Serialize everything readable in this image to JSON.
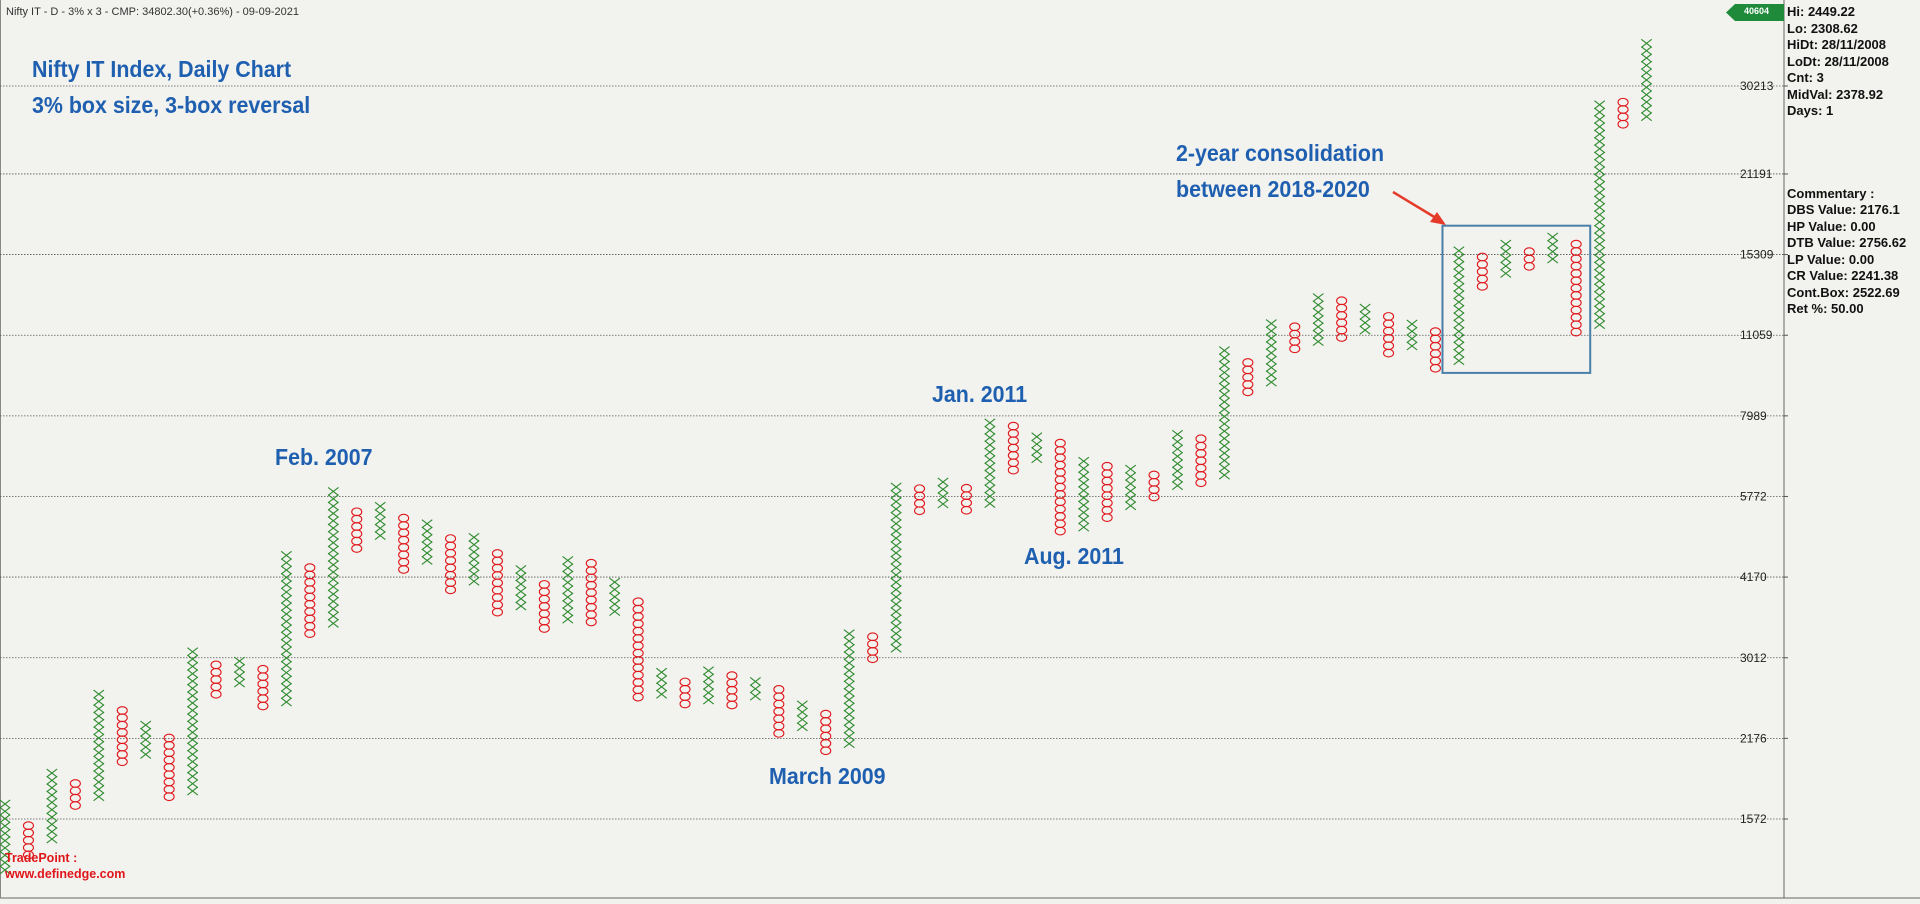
{
  "header": {
    "caption": "Nifty IT - D - 3% x 3 - CMP: 34802.30(+0.36%) - 09-09-2021",
    "title_line1": "Nifty IT Index, Daily Chart",
    "title_line2": "3% box size, 3-box reversal"
  },
  "annotations": {
    "feb2007": "Feb. 2007",
    "jan2011": "Jan. 2011",
    "aug2011": "Aug. 2011",
    "mar2009": "March 2009",
    "consol_line1": "2-year consolidation",
    "consol_line2": "between 2018-2020"
  },
  "info_panel": {
    "hi": "Hi: 2449.22",
    "lo": "Lo: 2308.62",
    "hidt": "HiDt: 28/11/2008",
    "lodt": "LoDt: 28/11/2008",
    "cnt": "Cnt: 3",
    "midval": "MidVal: 2378.92",
    "days": "Days: 1",
    "commentary": "Commentary :",
    "dbs": "DBS Value:  2176.1",
    "hp": "HP Value: 0.00",
    "dtb": "DTB Value: 2756.62",
    "lp": "LP Value: 0.00",
    "cr": "CR Value: 2241.38",
    "contbox": "Cont.Box: 2522.69",
    "ret": "Ret %: 50.00"
  },
  "price_badge": "40604",
  "brand": {
    "line1": "TradePoint :",
    "line2": "www.definedge.com"
  },
  "colors": {
    "x_color": "#2e8b2e",
    "o_color": "#e0161a",
    "annotation": "#1f5fb0",
    "box": "#4a7fa8",
    "arrow": "#e53a2a",
    "badge": "#1e8a3a"
  },
  "chart_data": {
    "type": "point-and-figure",
    "box_size_pct": 3,
    "reversal": 3,
    "scale": "log",
    "y_ticks": [
      1572,
      2176,
      3012,
      4170,
      5772,
      7989,
      11059,
      15309,
      21191,
      30213
    ],
    "y_tick_labels": [
      "1572",
      "2176",
      "3012",
      "4170",
      "5772",
      "7989",
      "11059",
      "15309",
      "21191",
      "30213"
    ],
    "columns": [
      {
        "t": "X",
        "lo": 1280,
        "hi": 1660
      },
      {
        "t": "O",
        "lo": 1360,
        "hi": 1530
      },
      {
        "t": "X",
        "lo": 1450,
        "hi": 1900
      },
      {
        "t": "O",
        "lo": 1660,
        "hi": 1820
      },
      {
        "t": "X",
        "lo": 1720,
        "hi": 2580
      },
      {
        "t": "O",
        "lo": 1980,
        "hi": 2430
      },
      {
        "t": "X",
        "lo": 2040,
        "hi": 2270
      },
      {
        "t": "O",
        "lo": 1720,
        "hi": 2160
      },
      {
        "t": "X",
        "lo": 1760,
        "hi": 3060
      },
      {
        "t": "O",
        "lo": 2600,
        "hi": 2900
      },
      {
        "t": "X",
        "lo": 2720,
        "hi": 3000
      },
      {
        "t": "O",
        "lo": 2480,
        "hi": 2880
      },
      {
        "t": "X",
        "lo": 2520,
        "hi": 4500
      },
      {
        "t": "O",
        "lo": 3320,
        "hi": 4360
      },
      {
        "t": "X",
        "lo": 3460,
        "hi": 5880
      },
      {
        "t": "O",
        "lo": 4680,
        "hi": 5500
      },
      {
        "t": "X",
        "lo": 4930,
        "hi": 5470
      },
      {
        "t": "O",
        "lo": 4300,
        "hi": 5280
      },
      {
        "t": "X",
        "lo": 4460,
        "hi": 5120
      },
      {
        "t": "O",
        "lo": 3960,
        "hi": 4910
      },
      {
        "t": "X",
        "lo": 4100,
        "hi": 4850
      },
      {
        "t": "O",
        "lo": 3620,
        "hi": 4600
      },
      {
        "t": "X",
        "lo": 3710,
        "hi": 4250
      },
      {
        "t": "O",
        "lo": 3390,
        "hi": 4020
      },
      {
        "t": "X",
        "lo": 3520,
        "hi": 4490
      },
      {
        "t": "O",
        "lo": 3480,
        "hi": 4350
      },
      {
        "t": "X",
        "lo": 3630,
        "hi": 4030
      },
      {
        "t": "O",
        "lo": 2570,
        "hi": 3830
      },
      {
        "t": "X",
        "lo": 2600,
        "hi": 2860
      },
      {
        "t": "O",
        "lo": 2500,
        "hi": 2760
      },
      {
        "t": "X",
        "lo": 2540,
        "hi": 2880
      },
      {
        "t": "O",
        "lo": 2490,
        "hi": 2790
      },
      {
        "t": "X",
        "lo": 2580,
        "hi": 2770
      },
      {
        "t": "O",
        "lo": 2220,
        "hi": 2670
      },
      {
        "t": "X",
        "lo": 2280,
        "hi": 2480
      },
      {
        "t": "O",
        "lo": 2070,
        "hi": 2430
      },
      {
        "t": "X",
        "lo": 2130,
        "hi": 3330
      },
      {
        "t": "O",
        "lo": 3000,
        "hi": 3240
      },
      {
        "t": "X",
        "lo": 3130,
        "hi": 6070
      },
      {
        "t": "O",
        "lo": 5450,
        "hi": 5900
      },
      {
        "t": "X",
        "lo": 5600,
        "hi": 6070
      },
      {
        "t": "O",
        "lo": 5460,
        "hi": 5910
      },
      {
        "t": "X",
        "lo": 5610,
        "hi": 7700
      },
      {
        "t": "O",
        "lo": 6420,
        "hi": 7580
      },
      {
        "t": "X",
        "lo": 6720,
        "hi": 7440
      },
      {
        "t": "O",
        "lo": 5020,
        "hi": 7120
      },
      {
        "t": "X",
        "lo": 5100,
        "hi": 6690
      },
      {
        "t": "O",
        "lo": 5300,
        "hi": 6500
      },
      {
        "t": "X",
        "lo": 5560,
        "hi": 6420
      },
      {
        "t": "O",
        "lo": 5760,
        "hi": 6290
      },
      {
        "t": "X",
        "lo": 6030,
        "hi": 7520
      },
      {
        "t": "O",
        "lo": 6100,
        "hi": 7240
      },
      {
        "t": "X",
        "lo": 6290,
        "hi": 10360
      },
      {
        "t": "O",
        "lo": 8800,
        "hi": 10000
      },
      {
        "t": "X",
        "lo": 9150,
        "hi": 11710
      },
      {
        "t": "O",
        "lo": 10470,
        "hi": 11290
      },
      {
        "t": "X",
        "lo": 10780,
        "hi": 12940
      },
      {
        "t": "O",
        "lo": 10960,
        "hi": 12550
      },
      {
        "t": "X",
        "lo": 11290,
        "hi": 12260
      },
      {
        "t": "O",
        "lo": 10290,
        "hi": 11900
      },
      {
        "t": "X",
        "lo": 10590,
        "hi": 11410
      },
      {
        "t": "O",
        "lo": 9680,
        "hi": 11080
      },
      {
        "t": "X",
        "lo": 9980,
        "hi": 15510
      },
      {
        "t": "O",
        "lo": 13470,
        "hi": 15040
      },
      {
        "t": "X",
        "lo": 14190,
        "hi": 15980
      },
      {
        "t": "O",
        "lo": 14600,
        "hi": 15500
      },
      {
        "t": "X",
        "lo": 15040,
        "hi": 16400
      },
      {
        "t": "O",
        "lo": 11200,
        "hi": 15980
      },
      {
        "t": "X",
        "lo": 11540,
        "hi": 28100
      },
      {
        "t": "O",
        "lo": 25900,
        "hi": 28200
      },
      {
        "t": "X",
        "lo": 26700,
        "hi": 35800
      }
    ]
  }
}
